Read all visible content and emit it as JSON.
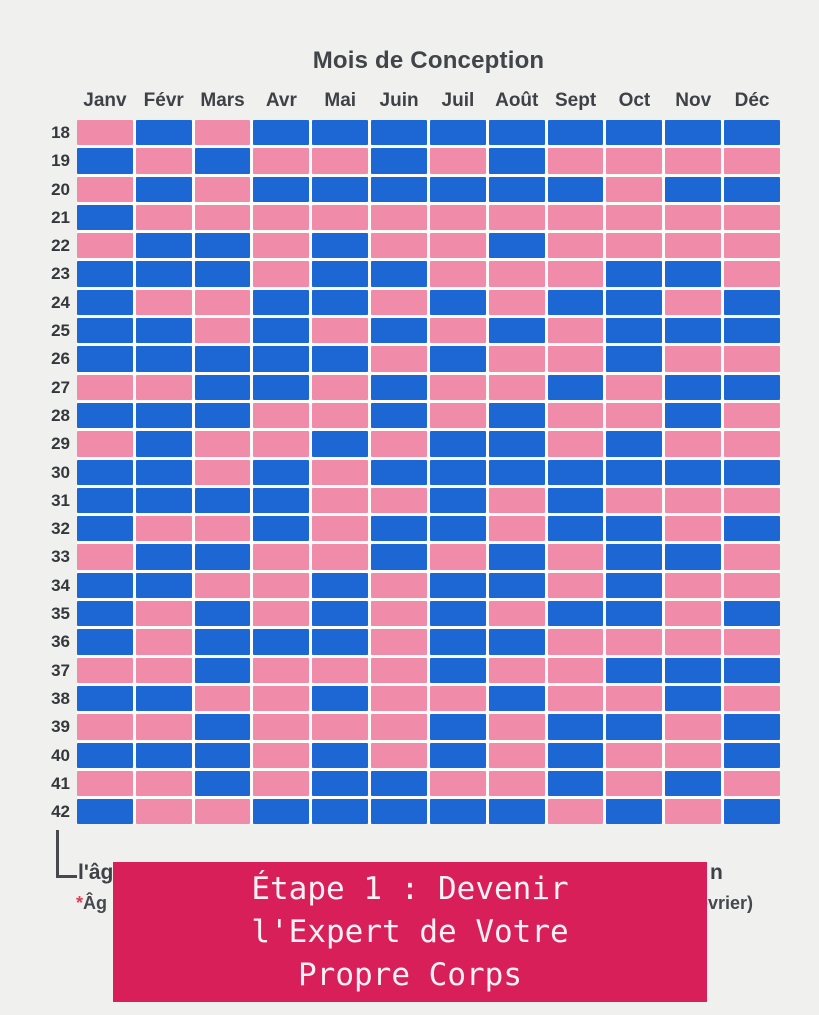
{
  "title": "Mois de Conception",
  "chart_data": {
    "type": "heatmap",
    "title": "Mois de Conception",
    "x_categories": [
      "Janv",
      "Févr",
      "Mars",
      "Avr",
      "Mai",
      "Juin",
      "Juil",
      "Août",
      "Sept",
      "Oct",
      "Nov",
      "Déc"
    ],
    "y_categories": [
      18,
      19,
      20,
      21,
      22,
      23,
      24,
      25,
      26,
      27,
      28,
      29,
      30,
      31,
      32,
      33,
      34,
      35,
      36,
      37,
      38,
      39,
      40,
      41,
      42
    ],
    "y_axis_meaning": "age (rows 18-42)",
    "cell_encoding": "B = blue cell, P = pink cell, columns Janv through Déc",
    "rows": [
      "PBPBBBBBBBBB",
      "BPBPPBPBPPPP",
      "PBPBBBBBBPBB",
      "BPPPPPPPPPPP",
      "PBBPBPPBPPPP",
      "BBBPBBPPPBBP",
      "BPPBBPBPBBPB",
      "BBPBPBPBPBBB",
      "BBBBBPBPPBPP",
      "PPBBPBPPBPBB",
      "BBBPPBPBPPBP",
      "PBPPBPBBPBPP",
      "BBPBPBBBBBBB",
      "BBBBPPBPBPPP",
      "BPPBPBBPBBPB",
      "PBBPPBPBPBBP",
      "BBPPBPBBPBPP",
      "BPBPBPBPBBPB",
      "BPBBBPBBPPPP",
      "PPBPPPBPPBBB",
      "BBPPBPPBPPBP",
      "PPBPPPBPBBPB",
      "BBBPBPBPBPPB",
      "PPBPBBPPBPBP",
      "BPPBBBBBPBPB"
    ],
    "color_map": {
      "B": "#1c67d3",
      "P": "#f08ca9"
    },
    "grid": "white gutters between cells",
    "legend_position": "none visible (bottom caption partially covered by banner)"
  },
  "caption": {
    "line1_left_fragment": "l'âg",
    "line1_right_fragment": "n",
    "line2_asterisk": "*",
    "line2_left_fragment": "Âg",
    "line2_right_fragment": "evrier)"
  },
  "overlay": {
    "lines": [
      "Étape 1 : Devenir",
      "l'Expert de Votre",
      "Propre Corps"
    ],
    "background": "#d81f5a",
    "text_color": "#fcf1f4"
  },
  "colors": {
    "page_background": "#f0f0ee",
    "blue_cell": "#1c67d3",
    "pink_cell": "#f08ca9",
    "label_text": "#3e4247",
    "asterisk_red": "#e23b57"
  }
}
